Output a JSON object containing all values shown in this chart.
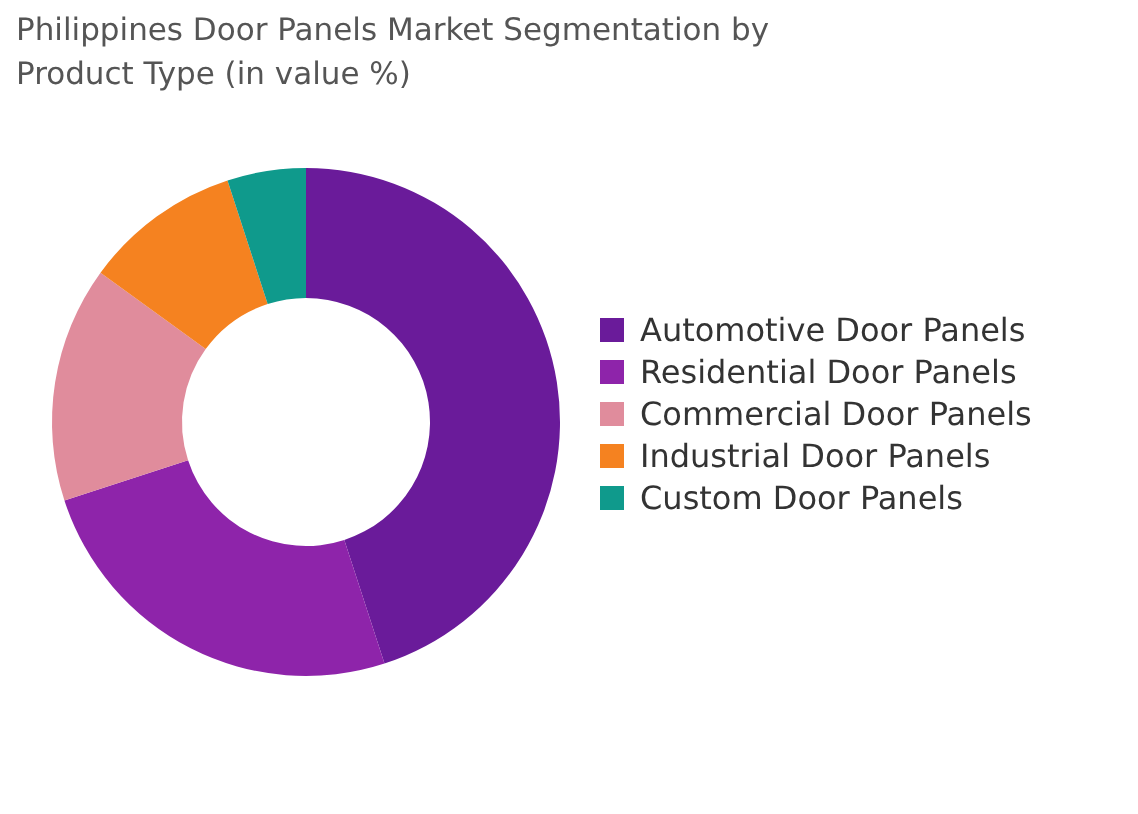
{
  "chart_data": {
    "type": "donut",
    "title": "Philippines Door Panels Market Segmentation by Product Type (in value %)",
    "categories": [
      "Automotive Door Panels",
      "Residential Door Panels",
      "Commercial Door Panels",
      "Industrial Door Panels",
      "Custom Door Panels"
    ],
    "values": [
      45,
      25,
      15,
      10,
      5
    ],
    "colors": [
      "#6a1b9a",
      "#8e24aa",
      "#e08c9c",
      "#f58220",
      "#0f9a8c"
    ],
    "legend": "right"
  }
}
